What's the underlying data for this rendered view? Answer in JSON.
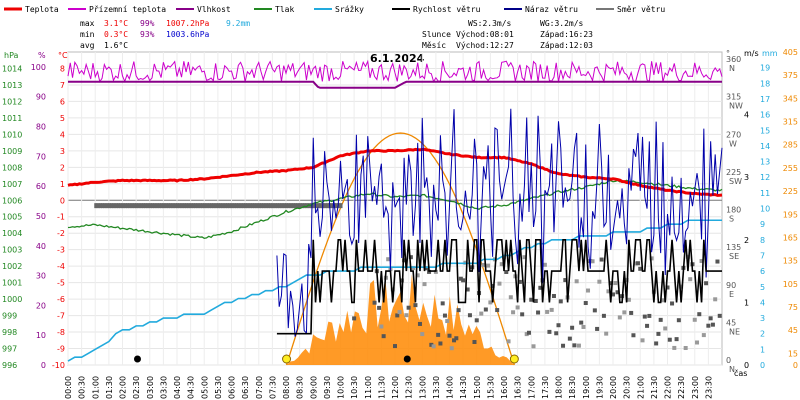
{
  "chart_data": {
    "type": "line",
    "title": "6.1.2024",
    "xlabel": "čas",
    "legend": [
      {
        "name": "Teplota",
        "color": "#ee0000"
      },
      {
        "name": "Přízemní teplota",
        "color": "#cc00cc"
      },
      {
        "name": "Vlhkost",
        "color": "#880088"
      },
      {
        "name": "Tlak",
        "color": "#228822"
      },
      {
        "name": "Srážky",
        "color": "#22aadd"
      },
      {
        "name": "Rychlost větru",
        "color": "#000000"
      },
      {
        "name": "Náraz větru",
        "color": "#000088"
      },
      {
        "name": "Směr větru",
        "color": "#777777"
      }
    ],
    "stats": {
      "max_label": "max",
      "min_label": "min",
      "avg_label": "avg",
      "max_temp": "3.1°C",
      "max_hum": "99%",
      "max_press": "1007.2hPa",
      "max_rain": "9.2mm",
      "min_temp": "0.3°C",
      "min_hum": "93%",
      "min_press": "1003.6hPa",
      "avg_temp": "1.6°C",
      "ws_avg": "WS:2.3m/s",
      "wg_avg": "WG:3.2m/s",
      "sun_label": "Slunce",
      "sun_rise": "Východ:08:01",
      "sun_set": "Západ:16:23",
      "moon_label": "Měsíc",
      "moon_rise": "Východ:12:27",
      "moon_set": "Západ:12:03"
    },
    "x_ticks": [
      "00:00",
      "00:30",
      "01:00",
      "01:30",
      "02:00",
      "02:30",
      "03:00",
      "03:30",
      "04:00",
      "04:30",
      "05:00",
      "05:30",
      "06:00",
      "06:30",
      "07:00",
      "07:30",
      "08:00",
      "08:30",
      "09:00",
      "09:30",
      "10:00",
      "10:30",
      "11:00",
      "11:30",
      "12:00",
      "12:30",
      "13:00",
      "13:30",
      "14:00",
      "14:30",
      "15:00",
      "15:30",
      "16:00",
      "16:30",
      "17:00",
      "17:30",
      "18:00",
      "18:30",
      "19:00",
      "19:30",
      "20:00",
      "20:30",
      "21:00",
      "21:30",
      "22:00",
      "22:30",
      "23:00",
      "23:30"
    ],
    "axes": {
      "pressure": {
        "unit": "hPa",
        "range": [
          996,
          1015
        ],
        "ticks": [
          "996",
          "997",
          "998",
          "999",
          "1000",
          "1001",
          "1002",
          "1003",
          "1004",
          "1005",
          "1006",
          "1007",
          "1008",
          "1009",
          "1010",
          "1011",
          "1012",
          "1013",
          "1014"
        ]
      },
      "humidity": {
        "unit": "%",
        "range": [
          0,
          105
        ],
        "ticks": [
          "0",
          "10",
          "20",
          "30",
          "40",
          "50",
          "60",
          "70",
          "80",
          "90",
          "100"
        ]
      },
      "temperature": {
        "unit": "°C",
        "range": [
          -10,
          9
        ],
        "ticks": [
          "-10",
          "-9",
          "-8",
          "-7",
          "-6",
          "-5",
          "-4",
          "-3",
          "-2",
          "-1",
          "0",
          "1",
          "2",
          "3",
          "4",
          "5",
          "6",
          "7",
          "8"
        ]
      },
      "wind_dir": {
        "unit": "°",
        "ticks": [
          {
            "deg": "0",
            "dir": "N"
          },
          {
            "deg": "45",
            "dir": "NE"
          },
          {
            "deg": "90",
            "dir": "E"
          },
          {
            "deg": "135",
            "dir": "SE"
          },
          {
            "deg": "180",
            "dir": "S"
          },
          {
            "deg": "225",
            "dir": "SW"
          },
          {
            "deg": "270",
            "dir": "W"
          },
          {
            "deg": "315",
            "dir": "NW"
          },
          {
            "deg": "360",
            "dir": "N"
          }
        ]
      },
      "wind_speed": {
        "unit": "m/s",
        "range": [
          0,
          5
        ],
        "ticks": [
          "0",
          "1",
          "2",
          "3",
          "4"
        ]
      },
      "rain": {
        "unit": "mm",
        "range": [
          0,
          20
        ],
        "ticks": [
          "0",
          "1",
          "2",
          "3",
          "4",
          "5",
          "6",
          "7",
          "8",
          "9",
          "10",
          "11",
          "12",
          "13",
          "14",
          "15",
          "16",
          "17",
          "18",
          "19"
        ]
      },
      "solar": {
        "range": [
          0,
          405
        ],
        "ticks": [
          "0",
          "15",
          "45",
          "75",
          "105",
          "135",
          "165",
          "195",
          "225",
          "255",
          "285",
          "315",
          "345",
          "375",
          "405"
        ]
      }
    },
    "series": {
      "temperature_anchor_hours": [
        0,
        1,
        2,
        3,
        4,
        5,
        6,
        7,
        8,
        9,
        10,
        11,
        12,
        13,
        14,
        15,
        16,
        17,
        18,
        19,
        20,
        21,
        22,
        23,
        24
      ],
      "temperature": [
        0.9,
        1.1,
        1.2,
        1.2,
        1.2,
        1.3,
        1.5,
        1.7,
        1.8,
        2.0,
        2.7,
        3.0,
        3.0,
        3.1,
        2.8,
        2.6,
        2.6,
        2.2,
        1.6,
        1.4,
        1.3,
        0.9,
        0.6,
        0.4,
        0.3
      ],
      "ground_temp_base": 99,
      "humidity_anchor_hours": [
        0,
        9,
        9.2,
        12,
        12.4,
        24
      ],
      "humidity": [
        95,
        95,
        93,
        93,
        95,
        95
      ],
      "pressure_anchor_hours": [
        0,
        1,
        2,
        3,
        4,
        5,
        6,
        7,
        8,
        9,
        10,
        11,
        12,
        13,
        14,
        15,
        16,
        17,
        18,
        19,
        20,
        21,
        22,
        23,
        24
      ],
      "pressure": [
        1004.4,
        1004.5,
        1004.3,
        1004.1,
        1003.9,
        1003.7,
        1004.1,
        1004.7,
        1005.3,
        1005.8,
        1006.1,
        1006.4,
        1006.2,
        1006.3,
        1006.0,
        1005.5,
        1005.7,
        1006.1,
        1006.5,
        1006.8,
        1007.2,
        1007.1,
        1006.9,
        1006.7,
        1006.6
      ],
      "rain_anchor_hours": [
        0,
        1,
        2,
        3,
        4,
        5,
        6,
        7,
        8,
        9,
        10,
        11,
        12,
        13,
        14,
        15,
        16,
        17,
        18,
        19,
        20,
        21,
        22,
        23,
        24
      ],
      "rain": [
        0.2,
        1.0,
        2.2,
        2.7,
        3.1,
        3.3,
        4.1,
        4.5,
        5.1,
        5.8,
        6.0,
        6.2,
        6.3,
        6.3,
        6.4,
        6.6,
        6.9,
        7.6,
        8.0,
        8.2,
        8.4,
        8.6,
        8.9,
        9.2,
        9.2
      ],
      "wind_dir_flat_value": 190,
      "solar_max": 120,
      "sunrise_hour": 8.02,
      "sunset_hour": 16.38
    }
  }
}
